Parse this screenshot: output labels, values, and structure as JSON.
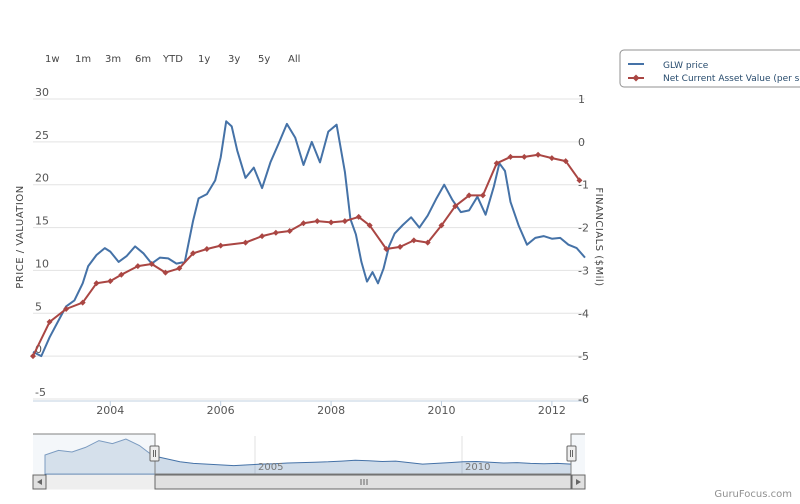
{
  "range_selector": {
    "buttons": [
      "1w",
      "1m",
      "3m",
      "6m",
      "YTD",
      "1y",
      "3y",
      "5y",
      "All"
    ]
  },
  "legend": {
    "items": [
      {
        "label": "GLW price",
        "color": "#4572a7",
        "marker": "none"
      },
      {
        "label": "Net Current Asset Value (per s",
        "color": "#aa4643",
        "marker": "diamond"
      }
    ]
  },
  "credit": "GuruFocus.com",
  "chart_data": {
    "type": "line",
    "title": "",
    "x_range": [
      2002.6,
      2012.6
    ],
    "x_ticks": [
      "2004",
      "2006",
      "2008",
      "2010",
      "2012"
    ],
    "y_left": {
      "label": "PRICE / VALUATION",
      "range": [
        -5,
        30
      ],
      "ticks": [
        "-5",
        "0",
        "5",
        "10",
        "15",
        "20",
        "25",
        "30"
      ]
    },
    "y_right": {
      "label": "FINANCIALS ($Mil)",
      "range": [
        -6,
        1
      ],
      "ticks": [
        "-6",
        "-5",
        "-4",
        "-3",
        "-2",
        "-1",
        "0",
        "1"
      ]
    },
    "grid": true,
    "legend_position": "top-right",
    "series": [
      {
        "name": "GLW price",
        "color": "#4572a7",
        "axis": "left",
        "x": [
          2002.6,
          2002.75,
          2002.9,
          2003.05,
          2003.2,
          2003.35,
          2003.5,
          2003.6,
          2003.75,
          2003.9,
          2004.0,
          2004.15,
          2004.3,
          2004.45,
          2004.6,
          2004.75,
          2004.9,
          2005.05,
          2005.2,
          2005.35,
          2005.5,
          2005.6,
          2005.75,
          2005.9,
          2006.0,
          2006.1,
          2006.2,
          2006.3,
          2006.45,
          2006.6,
          2006.75,
          2006.9,
          2007.05,
          2007.2,
          2007.35,
          2007.5,
          2007.65,
          2007.8,
          2007.95,
          2008.1,
          2008.25,
          2008.35,
          2008.45,
          2008.55,
          2008.65,
          2008.75,
          2008.85,
          2008.95,
          2009.05,
          2009.15,
          2009.3,
          2009.45,
          2009.6,
          2009.75,
          2009.9,
          2010.05,
          2010.2,
          2010.35,
          2010.5,
          2010.65,
          2010.8,
          2010.95,
          2011.05,
          2011.15,
          2011.25,
          2011.4,
          2011.55,
          2011.7,
          2011.85,
          2012.0,
          2012.15,
          2012.3,
          2012.45,
          2012.6
        ],
        "values": [
          0.5,
          0.0,
          2.2,
          4.0,
          5.8,
          6.5,
          8.5,
          10.5,
          11.8,
          12.6,
          12.2,
          11.0,
          11.7,
          12.8,
          12.0,
          10.8,
          11.5,
          11.4,
          10.8,
          11.0,
          15.8,
          18.4,
          18.9,
          20.5,
          23.2,
          27.4,
          26.8,
          24.0,
          20.8,
          22.0,
          19.6,
          22.6,
          24.8,
          27.1,
          25.5,
          22.3,
          25.0,
          22.6,
          26.2,
          27.0,
          21.5,
          16.0,
          14.2,
          11.0,
          8.7,
          9.8,
          8.5,
          10.2,
          12.8,
          14.3,
          15.3,
          16.2,
          15.0,
          16.4,
          18.3,
          20.0,
          18.2,
          16.8,
          17.0,
          18.6,
          16.5,
          19.8,
          22.5,
          21.6,
          18.0,
          15.2,
          13.0,
          13.8,
          14.0,
          13.7,
          13.8,
          13.0,
          12.6,
          11.5
        ]
      },
      {
        "name": "Net Current Asset Value (per s",
        "color": "#aa4643",
        "axis": "right",
        "x": [
          2002.6,
          2002.9,
          2003.2,
          2003.5,
          2003.75,
          2004.0,
          2004.2,
          2004.5,
          2004.75,
          2005.0,
          2005.25,
          2005.5,
          2005.75,
          2006.0,
          2006.45,
          2006.75,
          2007.0,
          2007.25,
          2007.5,
          2007.75,
          2008.0,
          2008.25,
          2008.5,
          2008.7,
          2009.0,
          2009.25,
          2009.5,
          2009.75,
          2010.0,
          2010.25,
          2010.5,
          2010.75,
          2011.0,
          2011.25,
          2011.5,
          2011.75,
          2012.0,
          2012.25,
          2012.5
        ],
        "values": [
          -5.0,
          -4.2,
          -3.9,
          -3.75,
          -3.3,
          -3.25,
          -3.1,
          -2.9,
          -2.85,
          -3.05,
          -2.95,
          -2.6,
          -2.5,
          -2.42,
          -2.35,
          -2.2,
          -2.12,
          -2.08,
          -1.9,
          -1.85,
          -1.88,
          -1.85,
          -1.75,
          -1.95,
          -2.5,
          -2.45,
          -2.3,
          -2.35,
          -1.95,
          -1.5,
          -1.25,
          -1.25,
          -0.5,
          -0.35,
          -0.35,
          -0.3,
          -0.38,
          -0.45,
          -0.9
        ]
      }
    ]
  },
  "navigator": {
    "x_labels": [
      "2005",
      "2010"
    ],
    "profile": [
      0.5,
      0.62,
      0.58,
      0.7,
      0.88,
      0.8,
      0.92,
      0.75,
      0.48,
      0.4,
      0.32,
      0.28,
      0.26,
      0.24,
      0.22,
      0.24,
      0.26,
      0.27,
      0.29,
      0.3,
      0.31,
      0.32,
      0.34,
      0.36,
      0.35,
      0.33,
      0.34,
      0.3,
      0.26,
      0.28,
      0.3,
      0.32,
      0.33,
      0.31,
      0.29,
      0.3,
      0.28,
      0.27,
      0.28,
      0.26
    ]
  }
}
